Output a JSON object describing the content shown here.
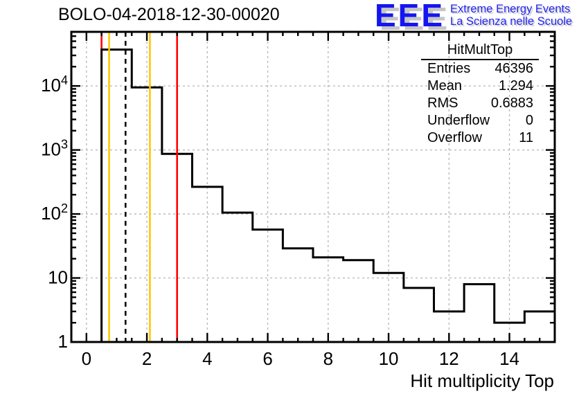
{
  "header": {
    "title": "BOLO-04-2018-12-30-00020"
  },
  "logo": {
    "acronym": "EEE",
    "line1": "Extreme Energy Events",
    "line2": "La Scienza nelle Scuole",
    "color": "#1515f0",
    "shadow_color": "#c6c6c6"
  },
  "stats": {
    "title": "HitMultTop",
    "rows": [
      {
        "label": "Entries",
        "value": "46396"
      },
      {
        "label": "Mean",
        "value": "1.294"
      },
      {
        "label": "RMS",
        "value": "0.6883"
      },
      {
        "label": "Underflow",
        "value": "0"
      },
      {
        "label": "Overflow",
        "value": "11"
      }
    ]
  },
  "chart_data": {
    "type": "bar",
    "style": "step-histogram-outline",
    "title": "BOLO-04-2018-12-30-00020",
    "xlabel": "Hit multiplicity Top",
    "ylabel": "",
    "y_scale": "log",
    "xlim": [
      -0.5,
      15.5
    ],
    "ylim": [
      1,
      70000
    ],
    "bin_width": 1,
    "categories": [
      1,
      2,
      3,
      4,
      5,
      6,
      7,
      8,
      9,
      10,
      11,
      12,
      13,
      14,
      15
    ],
    "values": [
      37000,
      9500,
      870,
      265,
      105,
      57,
      29,
      21,
      19,
      12,
      7,
      3,
      8,
      2,
      3
    ],
    "first_bin_left_edge": 0.5,
    "x_major_ticks": [
      0,
      2,
      4,
      6,
      8,
      10,
      12,
      14
    ],
    "x_minor_step": 0.5,
    "y_major_ticks": [
      1,
      10,
      100,
      1000,
      10000
    ],
    "y_tick_labels": [
      "1",
      "10",
      "10^2",
      "10^3",
      "10^4"
    ],
    "grid": {
      "on": true,
      "style": "dashed",
      "color": "#b4b4b4"
    },
    "line_color": "#000000",
    "legend_position": "none",
    "vertical_lines": [
      {
        "x": 0.5,
        "color": "#ff0000",
        "style": "solid",
        "z": "behind"
      },
      {
        "x": 0.75,
        "color": "#ffc800",
        "style": "solid",
        "z": "front"
      },
      {
        "x": 1.294,
        "color": "#000000",
        "style": "dashed",
        "z": "front"
      },
      {
        "x": 2.1,
        "color": "#ffc800",
        "style": "solid",
        "z": "front"
      },
      {
        "x": 3.0,
        "color": "#ff0000",
        "style": "solid",
        "z": "front"
      }
    ]
  }
}
